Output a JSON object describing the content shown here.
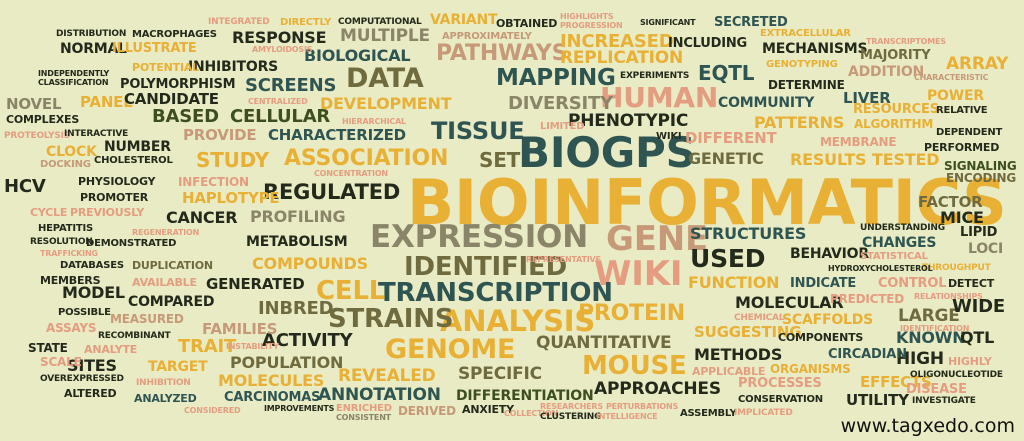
{
  "words": {
    "bioinformatics": "BIOINFORMATICS",
    "biogps": "BIOGPS",
    "expression": "EXPRESSION",
    "gene": "GENE",
    "wiki": "WIKI",
    "wiki_small": "WIKI",
    "analysis": "ANALYSIS",
    "genome": "GENOME",
    "identified": "IDENTIFIED",
    "transcription": "TRANSCRIPTION",
    "cell": "CELL",
    "strains": "STRAINS",
    "association": "ASSOCIATION",
    "tissue": "TISSUE",
    "data": "DATA",
    "human": "HUMAN",
    "mapping": "MAPPING",
    "pathways": "PATHWAYS",
    "regulated": "REGULATED",
    "used": "USED",
    "mouse": "MOUSE",
    "protein": "PROTEIN",
    "diversity": "DIVERSITY",
    "phenotypic": "PHENOTYPIC",
    "study": "STUDY",
    "set": "SET",
    "cellular": "CELLULAR",
    "based": "BASED",
    "screens": "SCREENS",
    "biological": "BIOLOGICAL",
    "multiple": "MULTIPLE",
    "response": "RESPONSE",
    "increased": "INCREASED",
    "replication": "REPLICATION",
    "eqtl": "EQTL",
    "including": "INCLUDING",
    "secreted": "SECRETED",
    "extracellular": "EXTRACELLULAR",
    "mechanisms": "MECHANISMS",
    "transcriptomes": "TRANSCRIPTOMES",
    "majority": "MAJORITY",
    "array": "ARRAY",
    "addition": "ADDITION",
    "characteristic": "CHARACTERISTIC",
    "genotyping": "GENOTYPING",
    "determine": "DETERMINE",
    "liver": "LIVER",
    "power": "POWER",
    "community": "COMMUNITY",
    "resources": "RESOURCES",
    "relative": "RELATIVE",
    "patterns": "PATTERNS",
    "algorithm": "ALGORITHM",
    "dependent": "DEPENDENT",
    "different": "DIFFERENT",
    "membrane": "MEMBRANE",
    "performed": "PERFORMED",
    "genetic": "GENETIC",
    "results": "RESULTS",
    "tested": "TESTED",
    "signaling": "SIGNALING",
    "encoding": "ENCODING",
    "factor": "FACTOR",
    "mice": "MICE",
    "lipid": "LIPID",
    "loci": "LOCI",
    "understanding": "UNDERSTANDING",
    "changes": "CHANGES",
    "structures": "STRUCTURES",
    "behavior": "BEHAVIOR",
    "statistical": "STATISTICAL",
    "throughput": "THROUGHPUT",
    "hydroxycholesterol": "HYDROXYCHOLESTEROL",
    "function": "FUNCTION",
    "indicate": "INDICATE",
    "control": "CONTROL",
    "detect": "DETECT",
    "relationships": "RELATIONSHIPS",
    "predicted": "PREDICTED",
    "molecular": "MOLECULAR",
    "large": "LARGE",
    "wide": "WIDE",
    "identification": "IDENTIFICATION",
    "scaffolds": "SCAFFOLDS",
    "chemical": "CHEMICAL",
    "components": "COMPONENTS",
    "suggesting": "SUGGESTING",
    "known": "KNOWN",
    "qtl": "QTL",
    "circadian": "CIRCADIAN",
    "methods": "METHODS",
    "high": "HIGH",
    "highly": "HIGHLY",
    "oligonucleotide": "OLIGONUCLEOTIDE",
    "organisms": "ORGANISMS",
    "applicable": "APPLICABLE",
    "effects": "EFFECTS",
    "disease": "DISEASE",
    "processes": "PROCESSES",
    "utility": "UTILITY",
    "investigate": "INVESTIGATE",
    "conservation": "CONSERVATION",
    "approaches": "APPROACHES",
    "assembly": "ASSEMBLY",
    "implicated": "IMPLICATED",
    "quantitative": "QUANTITATIVE",
    "specific": "SPECIFIC",
    "differentiation": "DIFFERENTIATION",
    "anxiety": "ANXIETY",
    "collection": "COLLECTION",
    "researchers": "RESEARCHERS",
    "perturbations": "PERTURBATIONS",
    "clustering": "CLUSTERING",
    "intelligence": "INTELLIGENCE",
    "revealed": "REVEALED",
    "annotation": "ANNOTATION",
    "derived": "DERIVED",
    "enriched": "ENRICHED",
    "consistent": "CONSISTENT",
    "improvements": "IMPROVEMENTS",
    "considered": "CONSIDERED",
    "carcinomas": "CARCINOMAS",
    "analyzed": "ANALYZED",
    "altered": "ALTERED",
    "overexpressed": "OVEREXPRESSED",
    "inhibition": "INHIBITION",
    "molecules": "MOLECULES",
    "population": "POPULATION",
    "instability": "INSTABILITY",
    "target": "TARGET",
    "sites": "SITES",
    "scale": "SCALE",
    "trait": "TRAIT",
    "analyte": "ANALYTE",
    "state": "STATE",
    "recombinant": "RECOMBINANT",
    "families": "FAMILIES",
    "activity": "ACTIVITY",
    "assays": "ASSAYS",
    "measured": "MEASURED",
    "possible": "POSSIBLE",
    "inbred": "INBRED",
    "compared": "COMPARED",
    "model": "MODEL",
    "members": "MEMBERS",
    "available": "AVAILABLE",
    "generated": "GENERATED",
    "compounds": "COMPOUNDS",
    "duplication": "DUPLICATION",
    "databases": "DATABASES",
    "trafficking": "TRAFFICKING",
    "demonstrated": "DEMONSTRATED",
    "resolution": "RESOLUTION",
    "hepatitis": "HEPATITIS",
    "metabolism": "METABOLISM",
    "regeneration": "REGENERATION",
    "cancer": "CANCER",
    "profiling": "PROFILING",
    "cycle": "CYCLE",
    "previously": "PREVIOUSLY",
    "promoter": "PROMOTER",
    "haplotype": "HAPLOTYPE",
    "physiology": "PHYSIOLOGY",
    "infection": "INFECTION",
    "hcv": "HCV",
    "docking": "DOCKING",
    "cholesterol": "CHOLESTEROL",
    "concentration": "CONCENTRATION",
    "clock": "CLOCK",
    "number": "NUMBER",
    "proteolysis": "PROTEOLYSIS",
    "interactive": "INTERACTIVE",
    "provide": "PROVIDE",
    "characterized": "CHARACTERIZED",
    "hierarchical": "HIERARCHICAL",
    "limited": "LIMITED",
    "complexes": "COMPLEXES",
    "novel": "NOVEL",
    "panel": "PANEL",
    "candidate": "CANDIDATE",
    "centralized": "CENTRALIZED",
    "development": "DEVELOPMENT",
    "classification": "CLASSIFICATION",
    "independently": "INDEPENDENTLY",
    "polymorphism": "POLYMORPHISM",
    "potential": "POTENTIAL",
    "inhibitors": "INHIBITORS",
    "amyloidosis": "AMYLOIDOSIS",
    "normal": "NORMAL",
    "illustrate": "ILLUSTRATE",
    "distribution": "DISTRIBUTION",
    "macrophages": "MACROPHAGES",
    "integrated": "INTEGRATED",
    "directly": "DIRECTLY",
    "computational": "COMPUTATIONAL",
    "variant": "VARIANT",
    "obtained": "OBTAINED",
    "approximately": "APPROXIMATELY",
    "highlights": "HIGHLIGHTS",
    "progression": "PROGRESSION",
    "significant": "SIGNIFICANT",
    "experiments": "EXPERIMENTS",
    "representative": "REPRESENTATIVE"
  },
  "watermark": "www.tagxedo.com",
  "colors": {
    "background": "#e9ebc4",
    "dark": "#232a1c",
    "teal": "#2f5553",
    "olive": "#6f6b3f",
    "gold": "#e8b035",
    "salmon": "#e49d80",
    "tan": "#c69a78",
    "gray": "#8a8468"
  }
}
